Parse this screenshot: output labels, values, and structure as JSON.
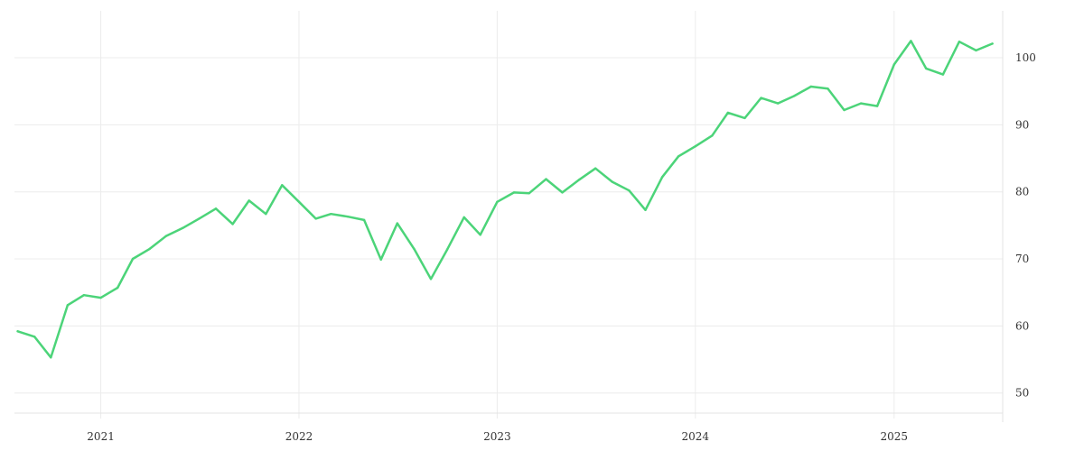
{
  "chart_data": {
    "type": "line",
    "title": "",
    "xlabel": "",
    "ylabel": "",
    "x_ticks": [
      "2021",
      "2022",
      "2023",
      "2024",
      "2025"
    ],
    "y_ticks": [
      50,
      60,
      70,
      80,
      90,
      100
    ],
    "ylim": [
      47,
      107
    ],
    "xlim": [
      "2020-07-26",
      "2025-07-20"
    ],
    "grid": true,
    "y_axis_side": "right",
    "legend": "none",
    "colors": {
      "line": "#4cd479",
      "grid": "#ececec",
      "text": "#333333"
    },
    "series": [
      {
        "x": [
          "2020-08-01",
          "2020-09-01",
          "2020-10-01",
          "2020-11-01",
          "2020-12-01",
          "2021-01-01",
          "2021-02-01",
          "2021-03-01",
          "2021-04-01",
          "2021-05-01",
          "2021-06-01",
          "2021-07-01",
          "2021-08-01",
          "2021-09-01",
          "2021-10-01",
          "2021-11-01",
          "2021-12-01",
          "2022-01-01",
          "2022-02-01",
          "2022-03-01",
          "2022-04-01",
          "2022-05-01",
          "2022-06-01",
          "2022-07-01",
          "2022-08-01",
          "2022-09-01",
          "2022-10-01",
          "2022-11-01",
          "2022-12-01",
          "2023-01-01",
          "2023-02-01",
          "2023-03-01",
          "2023-04-01",
          "2023-05-01",
          "2023-06-01",
          "2023-07-01",
          "2023-08-01",
          "2023-09-01",
          "2023-10-01",
          "2023-11-01",
          "2023-12-01",
          "2024-01-01",
          "2024-02-01",
          "2024-03-01",
          "2024-04-01",
          "2024-05-01",
          "2024-06-01",
          "2024-07-01",
          "2024-08-01",
          "2024-09-01",
          "2024-10-01",
          "2024-11-01",
          "2024-12-01",
          "2025-01-01",
          "2025-02-01",
          "2025-03-01",
          "2025-04-01",
          "2025-05-01",
          "2025-06-01",
          "2025-07-01"
        ],
        "values": [
          59.2,
          58.4,
          55.3,
          63.1,
          64.6,
          64.2,
          65.7,
          70.0,
          71.5,
          73.4,
          74.6,
          76.0,
          77.5,
          75.2,
          78.7,
          76.7,
          81.0,
          78.5,
          76.0,
          76.7,
          76.3,
          75.8,
          69.9,
          75.3,
          71.5,
          67.0,
          71.4,
          76.2,
          73.6,
          78.5,
          79.9,
          79.8,
          81.9,
          79.9,
          81.8,
          83.5,
          81.5,
          80.2,
          77.3,
          82.2,
          85.3,
          86.8,
          88.4,
          91.8,
          91.0,
          94.0,
          93.2,
          94.3,
          95.7,
          95.4,
          92.2,
          93.2,
          92.8,
          99.0,
          102.5,
          98.4,
          97.5,
          102.4,
          101.1,
          102.1
        ]
      }
    ]
  }
}
